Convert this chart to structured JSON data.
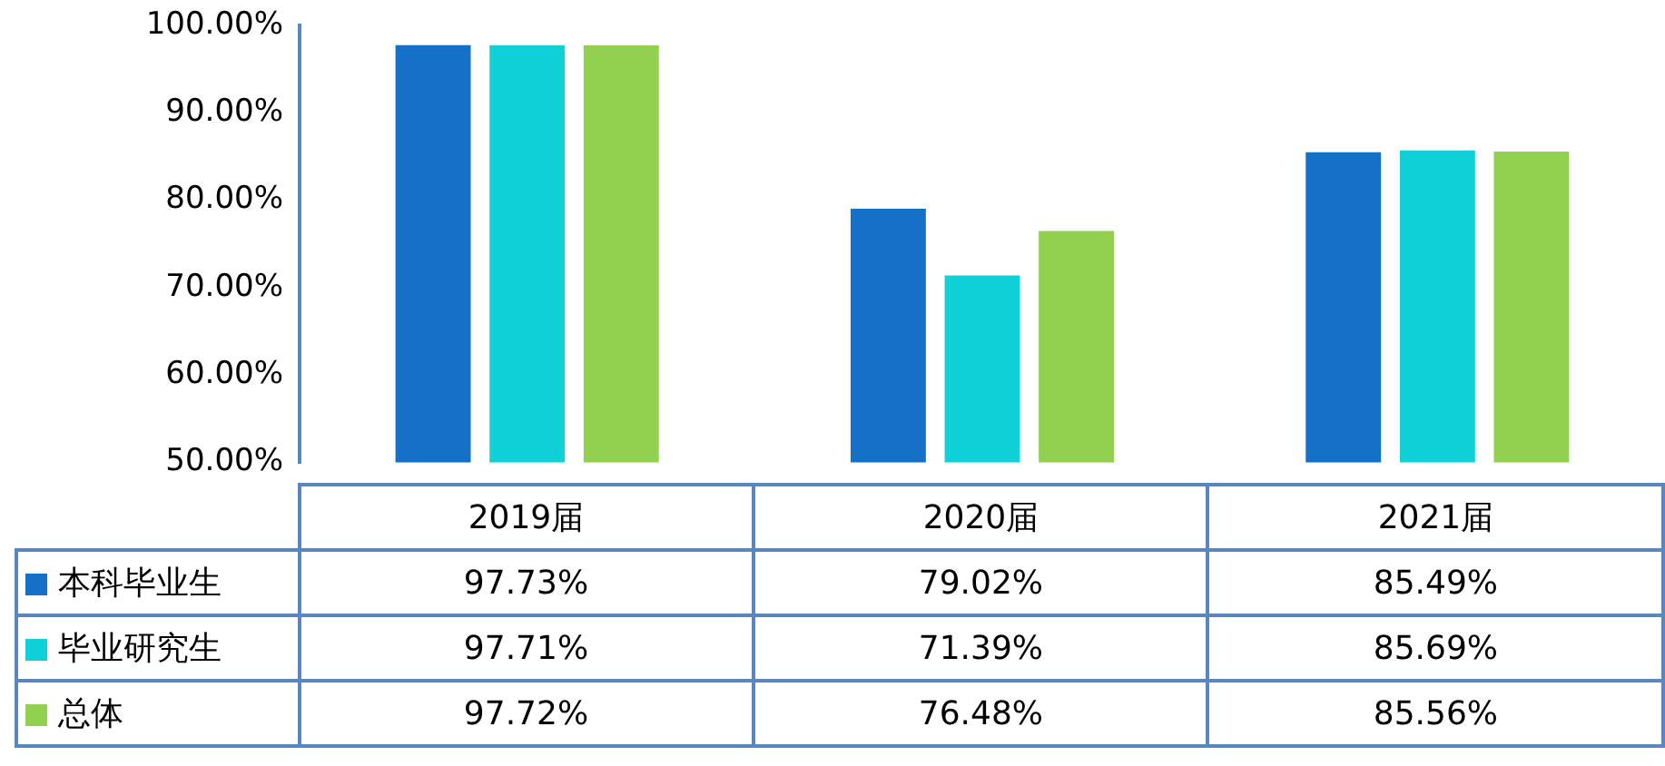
{
  "chart_data": {
    "type": "bar",
    "categories": [
      "2019届",
      "2020届",
      "2021届"
    ],
    "series": [
      {
        "name": "本科毕业生",
        "color": "#1570c8",
        "values": [
          97.73,
          79.02,
          85.49
        ],
        "value_labels": [
          "97.73%",
          "79.02%",
          "85.49%"
        ]
      },
      {
        "name": "毕业研究生",
        "color": "#10d0d8",
        "values": [
          97.71,
          71.39,
          85.69
        ],
        "value_labels": [
          "97.71%",
          "71.39%",
          "85.69%"
        ]
      },
      {
        "name": "总体",
        "color": "#92d050",
        "values": [
          97.72,
          76.48,
          85.56
        ],
        "value_labels": [
          "97.72%",
          "76.48%",
          "85.56%"
        ]
      }
    ],
    "ylim": [
      50,
      100
    ],
    "yticks": [
      {
        "value": 50,
        "label": "50.00%"
      },
      {
        "value": 60,
        "label": "60.00%"
      },
      {
        "value": 70,
        "label": "70.00%"
      },
      {
        "value": 80,
        "label": "80.00%"
      },
      {
        "value": 90,
        "label": "90.00%"
      },
      {
        "value": 100,
        "label": "100.00%"
      }
    ],
    "grid": false,
    "legend": "bottom"
  }
}
